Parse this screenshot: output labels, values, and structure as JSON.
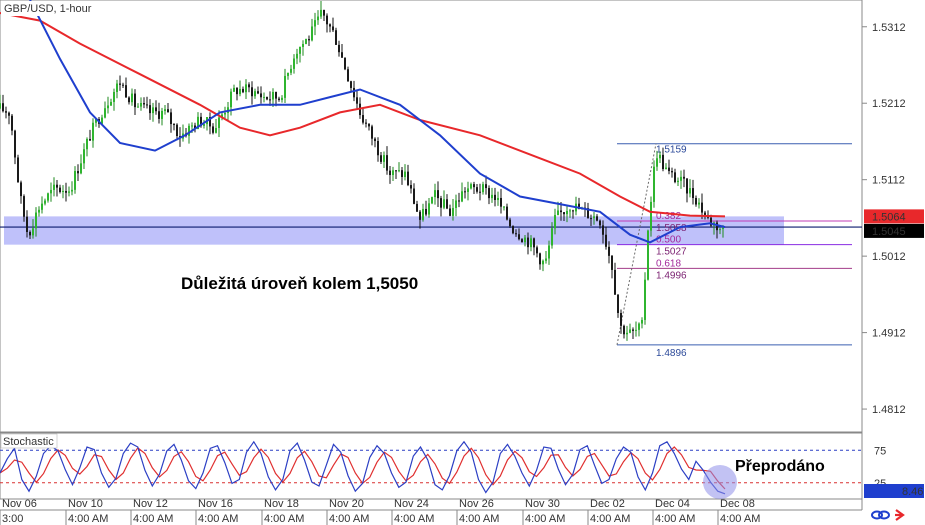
{
  "chart_data": {
    "type": "candlestick",
    "title": "GBP/USD, 1-hour",
    "y_ticks": [
      "1.5312",
      "1.5212",
      "1.5112",
      "1.5012",
      "1.4912",
      "1.4812"
    ],
    "y_range": [
      1.4782,
      1.5347
    ],
    "x_date_labels": [
      "Nov 06",
      "Nov 10",
      "Nov 12",
      "Nov 16",
      "Nov 18",
      "Nov 20",
      "Nov 24",
      "Nov 26",
      "Nov 30",
      "Dec 02",
      "Dec 04",
      "Dec 08"
    ],
    "x_time_labels": [
      "3:00",
      "4:00 AM",
      "4:00 AM",
      "4:00 AM",
      "4:00 AM",
      "4:00 AM",
      "4:00 AM",
      "4:00 AM",
      "4:00 AM",
      "4:00 AM",
      "4:00 AM",
      "4:00 AM"
    ],
    "price_path": [
      {
        "i": 0,
        "v": 1.5205
      },
      {
        "i": 10,
        "v": 1.52
      },
      {
        "i": 20,
        "v": 1.509
      },
      {
        "i": 28,
        "v": 1.504
      },
      {
        "i": 40,
        "v": 1.508
      },
      {
        "i": 55,
        "v": 1.51
      },
      {
        "i": 70,
        "v": 1.51
      },
      {
        "i": 90,
        "v": 1.517
      },
      {
        "i": 105,
        "v": 1.521
      },
      {
        "i": 120,
        "v": 1.524
      },
      {
        "i": 135,
        "v": 1.521
      },
      {
        "i": 150,
        "v": 1.52
      },
      {
        "i": 165,
        "v": 1.52
      },
      {
        "i": 180,
        "v": 1.517
      },
      {
        "i": 200,
        "v": 1.519
      },
      {
        "i": 215,
        "v": 1.518
      },
      {
        "i": 235,
        "v": 1.523
      },
      {
        "i": 250,
        "v": 1.523
      },
      {
        "i": 265,
        "v": 1.522
      },
      {
        "i": 280,
        "v": 1.522
      },
      {
        "i": 295,
        "v": 1.528
      },
      {
        "i": 310,
        "v": 1.53
      },
      {
        "i": 322,
        "v": 1.533
      },
      {
        "i": 335,
        "v": 1.53
      },
      {
        "i": 350,
        "v": 1.524
      },
      {
        "i": 360,
        "v": 1.52
      },
      {
        "i": 375,
        "v": 1.516
      },
      {
        "i": 390,
        "v": 1.512
      },
      {
        "i": 405,
        "v": 1.512
      },
      {
        "i": 420,
        "v": 1.506
      },
      {
        "i": 435,
        "v": 1.509
      },
      {
        "i": 450,
        "v": 1.507
      },
      {
        "i": 465,
        "v": 1.51
      },
      {
        "i": 480,
        "v": 1.51
      },
      {
        "i": 495,
        "v": 1.509
      },
      {
        "i": 512,
        "v": 1.505
      },
      {
        "i": 530,
        "v": 1.503
      },
      {
        "i": 545,
        "v": 1.5
      },
      {
        "i": 555,
        "v": 1.506
      },
      {
        "i": 570,
        "v": 1.508
      },
      {
        "i": 585,
        "v": 1.507
      },
      {
        "i": 600,
        "v": 1.506
      },
      {
        "i": 612,
        "v": 1.5
      },
      {
        "i": 620,
        "v": 1.492
      },
      {
        "i": 632,
        "v": 1.491
      },
      {
        "i": 642,
        "v": 1.492
      },
      {
        "i": 648,
        "v": 1.505
      },
      {
        "i": 656,
        "v": 1.515
      },
      {
        "i": 668,
        "v": 1.512
      },
      {
        "i": 680,
        "v": 1.511
      },
      {
        "i": 695,
        "v": 1.509
      },
      {
        "i": 708,
        "v": 1.506
      },
      {
        "i": 725,
        "v": 1.5045
      }
    ],
    "series": [
      {
        "name": "MA-red",
        "color": "#e8282b",
        "points": [
          {
            "i": 0,
            "v": 1.533
          },
          {
            "i": 40,
            "v": 1.532
          },
          {
            "i": 80,
            "v": 1.529
          },
          {
            "i": 140,
            "v": 1.525
          },
          {
            "i": 200,
            "v": 1.521
          },
          {
            "i": 240,
            "v": 1.518
          },
          {
            "i": 270,
            "v": 1.517
          },
          {
            "i": 300,
            "v": 1.518
          },
          {
            "i": 340,
            "v": 1.52
          },
          {
            "i": 380,
            "v": 1.521
          },
          {
            "i": 420,
            "v": 1.519
          },
          {
            "i": 480,
            "v": 1.517
          },
          {
            "i": 540,
            "v": 1.514
          },
          {
            "i": 580,
            "v": 1.512
          },
          {
            "i": 620,
            "v": 1.509
          },
          {
            "i": 650,
            "v": 1.507
          },
          {
            "i": 690,
            "v": 1.5065
          },
          {
            "i": 725,
            "v": 1.5064
          }
        ]
      },
      {
        "name": "MA-blue",
        "color": "#1f3fce",
        "points": [
          {
            "i": 30,
            "v": 1.5347
          },
          {
            "i": 60,
            "v": 1.527
          },
          {
            "i": 90,
            "v": 1.52
          },
          {
            "i": 120,
            "v": 1.516
          },
          {
            "i": 155,
            "v": 1.515
          },
          {
            "i": 185,
            "v": 1.517
          },
          {
            "i": 220,
            "v": 1.52
          },
          {
            "i": 260,
            "v": 1.521
          },
          {
            "i": 300,
            "v": 1.521
          },
          {
            "i": 330,
            "v": 1.522
          },
          {
            "i": 360,
            "v": 1.523
          },
          {
            "i": 400,
            "v": 1.521
          },
          {
            "i": 440,
            "v": 1.517
          },
          {
            "i": 480,
            "v": 1.512
          },
          {
            "i": 520,
            "v": 1.509
          },
          {
            "i": 560,
            "v": 1.508
          },
          {
            "i": 600,
            "v": 1.507
          },
          {
            "i": 630,
            "v": 1.504
          },
          {
            "i": 650,
            "v": 1.503
          },
          {
            "i": 680,
            "v": 1.505
          },
          {
            "i": 710,
            "v": 1.5055
          },
          {
            "i": 725,
            "v": 1.505
          }
        ]
      }
    ],
    "support_zone": {
      "top": 1.5064,
      "bottom": 1.5027,
      "line": 1.505
    },
    "fibonacci": {
      "levels": [
        {
          "ratio": "",
          "price": "1.5159",
          "value": 1.5159
        },
        {
          "ratio": "0.382",
          "price": "1.5058",
          "value": 1.5058
        },
        {
          "ratio": "0.500",
          "price": "1.5027",
          "value": 1.5027
        },
        {
          "ratio": "0.618",
          "price": "1.4996",
          "value": 1.4996
        },
        {
          "ratio": "",
          "price": "1.4896",
          "value": 1.4896
        }
      ]
    },
    "price_badges": [
      {
        "label": "1.5064",
        "value": 1.5064,
        "color": "#e8282b"
      },
      {
        "label": "1.5045",
        "value": 1.5045,
        "color": "#000000"
      }
    ],
    "annotation_support": "Důležitá úroveň kolem 1,5050",
    "stochastic": {
      "title": "Stochastic",
      "ticks": [
        "75",
        "25"
      ],
      "levels": [
        75,
        25
      ],
      "current_value": "8.46",
      "annotation": "Přeprodáno",
      "k_points": [
        40,
        62,
        78,
        30,
        12,
        35,
        70,
        82,
        74,
        45,
        22,
        48,
        80,
        76,
        40,
        18,
        32,
        70,
        86,
        80,
        44,
        20,
        38,
        74,
        84,
        60,
        28,
        16,
        40,
        78,
        82,
        56,
        24,
        30,
        72,
        88,
        70,
        34,
        14,
        30,
        74,
        86,
        60,
        26,
        20,
        52,
        84,
        72,
        36,
        12,
        24,
        64,
        82,
        70,
        40,
        18,
        26,
        66,
        80,
        60,
        22,
        14,
        36,
        74,
        88,
        72,
        30,
        10,
        26,
        70,
        84,
        66,
        40,
        20,
        44,
        80,
        78,
        46,
        22,
        38,
        76,
        82,
        52,
        24,
        30,
        62,
        80,
        72,
        34,
        14,
        40,
        82,
        88,
        70,
        46,
        30,
        58,
        44,
        26,
        12,
        8
      ]
    }
  },
  "footer": {
    "icons": [
      "link-icon",
      "arrow-icon"
    ]
  }
}
